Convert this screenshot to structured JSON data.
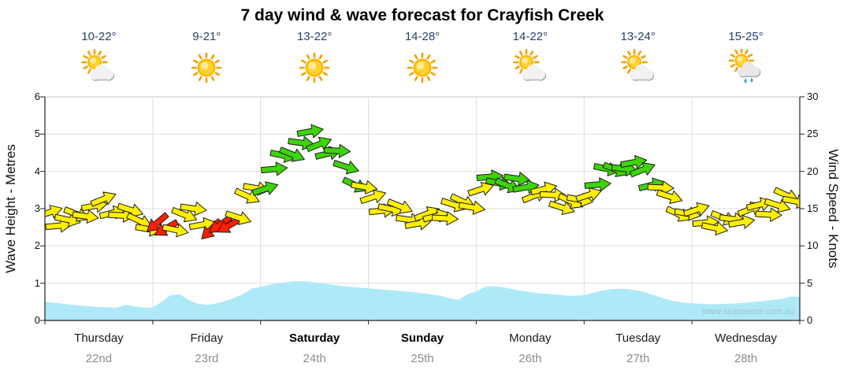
{
  "title": "7 day wind & wave forecast for Crayfish Creek",
  "watermark": "www.seabreeze.com.au",
  "axes": {
    "left_title": "Wave Height - Metres",
    "right_title": "Wind Speed - Knots",
    "left_ticks": [
      "6",
      "5",
      "4",
      "3",
      "2",
      "1",
      "0"
    ],
    "right_ticks": [
      "30",
      "25",
      "20",
      "15",
      "10",
      "5",
      "0"
    ]
  },
  "chart_data": {
    "type": "area+wind-arrows",
    "title": "7 day wind & wave forecast for Crayfish Creek",
    "grid": true,
    "legend": "none",
    "sample_step_hours": 2,
    "days": [
      {
        "name": "Thursday",
        "date": "22nd",
        "temp": "10-22°",
        "icon": "sun-cloud",
        "bold": false
      },
      {
        "name": "Friday",
        "date": "23rd",
        "temp": "9-21°",
        "icon": "sunny",
        "bold": false
      },
      {
        "name": "Saturday",
        "date": "24th",
        "temp": "13-22°",
        "icon": "sunny",
        "bold": true
      },
      {
        "name": "Sunday",
        "date": "25th",
        "temp": "14-28°",
        "icon": "sunny",
        "bold": true
      },
      {
        "name": "Monday",
        "date": "26th",
        "temp": "14-22°",
        "icon": "sun-cloud",
        "bold": false
      },
      {
        "name": "Tuesday",
        "date": "27th",
        "temp": "13-24°",
        "icon": "sun-cloud",
        "bold": false
      },
      {
        "name": "Wednesday",
        "date": "28th",
        "temp": "15-25°",
        "icon": "sun-cloud-rain",
        "bold": false
      }
    ],
    "wave": {
      "label": "Wave Height - Metres",
      "unit": "m",
      "ylim": [
        0,
        6
      ],
      "fill": "#aee9f8",
      "heights": [
        0.5,
        0.48,
        0.45,
        0.42,
        0.4,
        0.38,
        0.36,
        0.35,
        0.34,
        0.42,
        0.38,
        0.34,
        0.35,
        0.5,
        0.68,
        0.7,
        0.55,
        0.45,
        0.42,
        0.45,
        0.52,
        0.6,
        0.7,
        0.85,
        0.9,
        0.96,
        1.0,
        1.03,
        1.05,
        1.05,
        1.02,
        0.99,
        0.96,
        0.93,
        0.9,
        0.88,
        0.86,
        0.84,
        0.82,
        0.8,
        0.78,
        0.76,
        0.73,
        0.7,
        0.66,
        0.6,
        0.55,
        0.7,
        0.78,
        0.9,
        0.92,
        0.89,
        0.84,
        0.8,
        0.76,
        0.73,
        0.71,
        0.69,
        0.67,
        0.66,
        0.68,
        0.74,
        0.8,
        0.84,
        0.85,
        0.84,
        0.8,
        0.74,
        0.66,
        0.58,
        0.52,
        0.48,
        0.46,
        0.45,
        0.44,
        0.44,
        0.45,
        0.46,
        0.48,
        0.5,
        0.52,
        0.55,
        0.58,
        0.64
      ]
    },
    "wind": {
      "label": "Wind Speed - Knots",
      "unit": "knots",
      "ylim": [
        0,
        30
      ],
      "speeds": [
        14.5,
        13.5,
        13.0,
        13.8,
        14.8,
        15.3,
        15.5,
        15.0,
        14.5,
        14.0,
        13.5,
        13.0,
        12.5,
        12.0,
        13.0,
        14.0,
        14.3,
        13.5,
        12.5,
        12.0,
        13.0,
        14.5,
        16.0,
        17.5,
        18.5,
        20.0,
        21.5,
        23.0,
        24.0,
        24.5,
        24.0,
        23.0,
        22.0,
        20.5,
        19.0,
        17.5,
        16.0,
        15.5,
        15.0,
        14.5,
        14.0,
        13.5,
        13.5,
        14.0,
        14.5,
        15.0,
        15.5,
        16.0,
        17.5,
        18.5,
        19.0,
        18.5,
        18.2,
        18.0,
        17.5,
        17.0,
        16.5,
        16.0,
        15.8,
        15.5,
        17.5,
        18.5,
        19.5,
        20.5,
        21.0,
        20.5,
        20.0,
        19.0,
        17.5,
        16.0,
        15.0,
        14.5,
        14.0,
        13.5,
        13.0,
        13.0,
        13.5,
        14.0,
        14.5,
        15.0,
        15.0,
        15.5,
        16.0,
        16.5
      ],
      "dirs_deg": [
        -18,
        -5,
        12,
        22,
        8,
        -10,
        -22,
        -14,
        3,
        18,
        25,
        10,
        140,
        150,
        12,
        22,
        8,
        -10,
        135,
        145,
        150,
        18,
        25,
        10,
        -18,
        -5,
        12,
        22,
        8,
        -10,
        -22,
        -14,
        3,
        18,
        25,
        10,
        -18,
        -5,
        12,
        22,
        8,
        -10,
        -22,
        -14,
        3,
        18,
        25,
        10,
        -18,
        -5,
        12,
        22,
        8,
        -10,
        -22,
        -14,
        3,
        18,
        25,
        10,
        -18,
        -5,
        12,
        22,
        8,
        -10,
        -22,
        -14,
        3,
        18,
        25,
        10,
        -18,
        -5,
        12,
        22,
        8,
        -10,
        -22,
        -14,
        3,
        18,
        25,
        10
      ],
      "colors": [
        "y",
        "y",
        "y",
        "y",
        "y",
        "y",
        "y",
        "y",
        "y",
        "y",
        "y",
        "y",
        "r",
        "r",
        "y",
        "y",
        "y",
        "y",
        "r",
        "r",
        "r",
        "y",
        "y",
        "y",
        "g",
        "g",
        "g",
        "g",
        "g",
        "g",
        "g",
        "g",
        "g",
        "g",
        "g",
        "y",
        "y",
        "y",
        "y",
        "y",
        "y",
        "y",
        "y",
        "y",
        "y",
        "y",
        "y",
        "y",
        "y",
        "g",
        "g",
        "g",
        "g",
        "g",
        "y",
        "y",
        "y",
        "y",
        "y",
        "y",
        "y",
        "g",
        "g",
        "g",
        "g",
        "g",
        "g",
        "g",
        "y",
        "y",
        "y",
        "y",
        "y",
        "y",
        "y",
        "y",
        "y",
        "y",
        "y",
        "y",
        "y",
        "y",
        "y",
        "y"
      ]
    },
    "color_map": {
      "y": "#ffef00",
      "g": "#3ed40a",
      "r": "#ff1e00"
    }
  }
}
